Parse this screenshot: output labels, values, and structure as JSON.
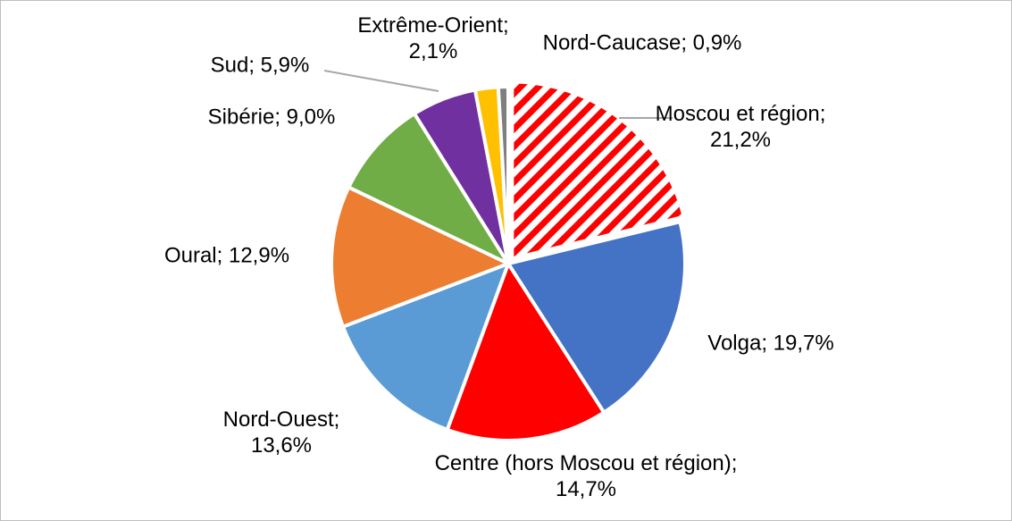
{
  "chart_data": {
    "type": "pie",
    "values": [
      21.2,
      19.7,
      14.7,
      13.6,
      12.9,
      9.0,
      5.9,
      2.1,
      0.9
    ],
    "value_labels": [
      "Moscou et région; 21,2%",
      "Volga; 19,7%",
      "Centre (hors Moscou et région); 14,7%",
      "Nord-Ouest; 13,6%",
      "Oural; 12,9%",
      "Sibérie; 9,0%",
      "Sud; 5,9%",
      "Extrême-Orient; 2,1%",
      "Nord-Caucase; 0,9%"
    ],
    "colors": [
      "#ff0000",
      "#4472c4",
      "#ff0000",
      "#5b9bd5",
      "#ed7d31",
      "#70ad47",
      "#7030a0",
      "#ffc000",
      "#7f7f7f"
    ],
    "hatched": [
      true,
      false,
      false,
      false,
      false,
      false,
      false,
      false,
      false
    ]
  }
}
